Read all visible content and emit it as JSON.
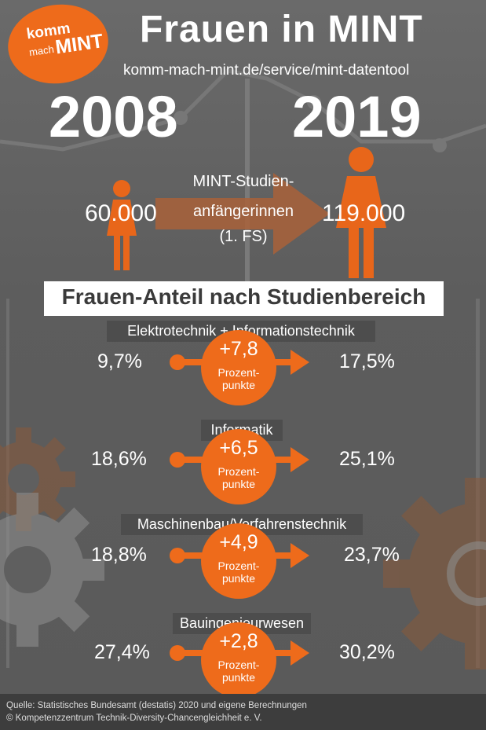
{
  "header": {
    "logo_top": "komm",
    "logo_mid": "mach",
    "logo_bot": "MINT",
    "title": "Frauen in MINT",
    "url": "komm-mach-mint.de/service/mint-datentool"
  },
  "comparison": {
    "year_left": "2008",
    "year_right": "2019",
    "value_left": "60.000",
    "value_right": "119.000",
    "label_lines": [
      "MINT-Studien-",
      "anfängerinnen",
      "(1. FS)"
    ]
  },
  "section_title": "Frauen-Anteil nach Studienbereich",
  "categories": [
    {
      "name": "Elektrotechnik + Informationstechnik",
      "from": "9,7%",
      "to": "17,5%",
      "delta": "+7,8",
      "unit_lines": [
        "Prozent-",
        "punkte"
      ]
    },
    {
      "name": "Informatik",
      "from": "18,6%",
      "to": "25,1%",
      "delta": "+6,5",
      "unit_lines": [
        "Prozent-",
        "punkte"
      ]
    },
    {
      "name": "Maschinenbau/Verfahrenstechnik",
      "from": "18,8%",
      "to": "23,7%",
      "delta": "+4,9",
      "unit_lines": [
        "Prozent-",
        "punkte"
      ]
    },
    {
      "name": "Bauingenieurwesen",
      "from": "27,4%",
      "to": "30,2%",
      "delta": "+2,8",
      "unit_lines": [
        "Prozent-",
        "punkte"
      ]
    }
  ],
  "footer": {
    "source": "Quelle: Statistisches Bundesamt (destatis) 2020 und eigene Berechnungen",
    "copyright": "© Kompetenzzentrum Technik-Diversity-Chancengleichheit e. V."
  },
  "colors": {
    "accent": "#ee6b1b",
    "background": "#5f5f5f",
    "text": "#ffffff",
    "footer": "#3d3d3d"
  },
  "icons": [
    "woman-icon-small",
    "woman-icon-large",
    "gear-icon",
    "arrow-right-icon"
  ]
}
